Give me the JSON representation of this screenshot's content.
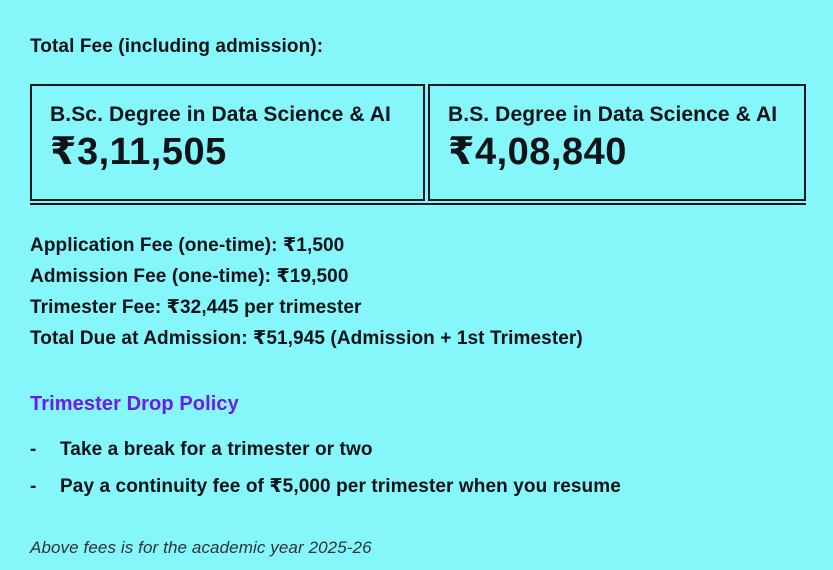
{
  "page": {
    "background_color": "#85f6fa",
    "text_color": "#101418",
    "accent_purple": "#6d1be6",
    "heading": "Total Fee (including admission):"
  },
  "fee_table": {
    "columns": [
      {
        "title": "B.Sc. Degree in Data Science & AI",
        "amount": "₹3,11,505"
      },
      {
        "title": "B.S. Degree in Data Science & AI",
        "amount": "₹4,08,840"
      }
    ]
  },
  "fee_lines": [
    "Application Fee (one-time): ₹1,500",
    "Admission Fee (one-time): ₹19,500",
    "Trimester Fee: ₹32,445 per trimester",
    "Total Due at Admission: ₹51,945 (Admission + 1st Trimester)"
  ],
  "drop_policy": {
    "heading": "Trimester Drop Policy",
    "bullet_marker": "-",
    "bullets": [
      "Take a break for a trimester or two",
      "Pay a continuity fee of ₹5,000 per trimester when you resume"
    ]
  },
  "footnote": "Above fees is for the academic year 2025-26"
}
